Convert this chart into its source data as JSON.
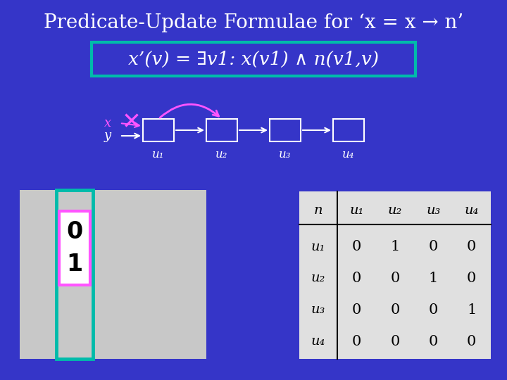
{
  "bg_color": "#3535c8",
  "title": "Predicate-Update Formulae for ‘x = x → n’",
  "title_color": "#ffffff",
  "title_fontsize": 20,
  "formula": "x’(v) = ∃v1: x(v1) ∧ n(v1,v)",
  "formula_box_color": "#00bbaa",
  "formula_text_color": "#ffffff",
  "formula_fontsize": 19,
  "node_labels": [
    "u₁",
    "u₂",
    "u₃",
    "u₄"
  ],
  "node_box_color": "#ffffff",
  "pointer_x_label": "x",
  "pointer_x_color": "#ff55ff",
  "pointer_y_label": "y",
  "cross_color": "#ff55ff",
  "arc_color": "#ff55ff",
  "list_panel_bg": "#c8c8c8",
  "list_panel_border_color": "#00bbaa",
  "list_cell_highlight_border": "#ff55ff",
  "list_cell_values": [
    "0",
    "1"
  ],
  "table_bg": "#e0e0e0",
  "table_header_row": [
    "n",
    "u₁",
    "u₂",
    "u₃",
    "u₄"
  ],
  "table_row_labels": [
    "u₁",
    "u₂",
    "u₃",
    "u₄"
  ],
  "table_data": [
    [
      0,
      1,
      0,
      0
    ],
    [
      0,
      0,
      1,
      0
    ],
    [
      0,
      0,
      0,
      1
    ],
    [
      0,
      0,
      0,
      0
    ]
  ]
}
